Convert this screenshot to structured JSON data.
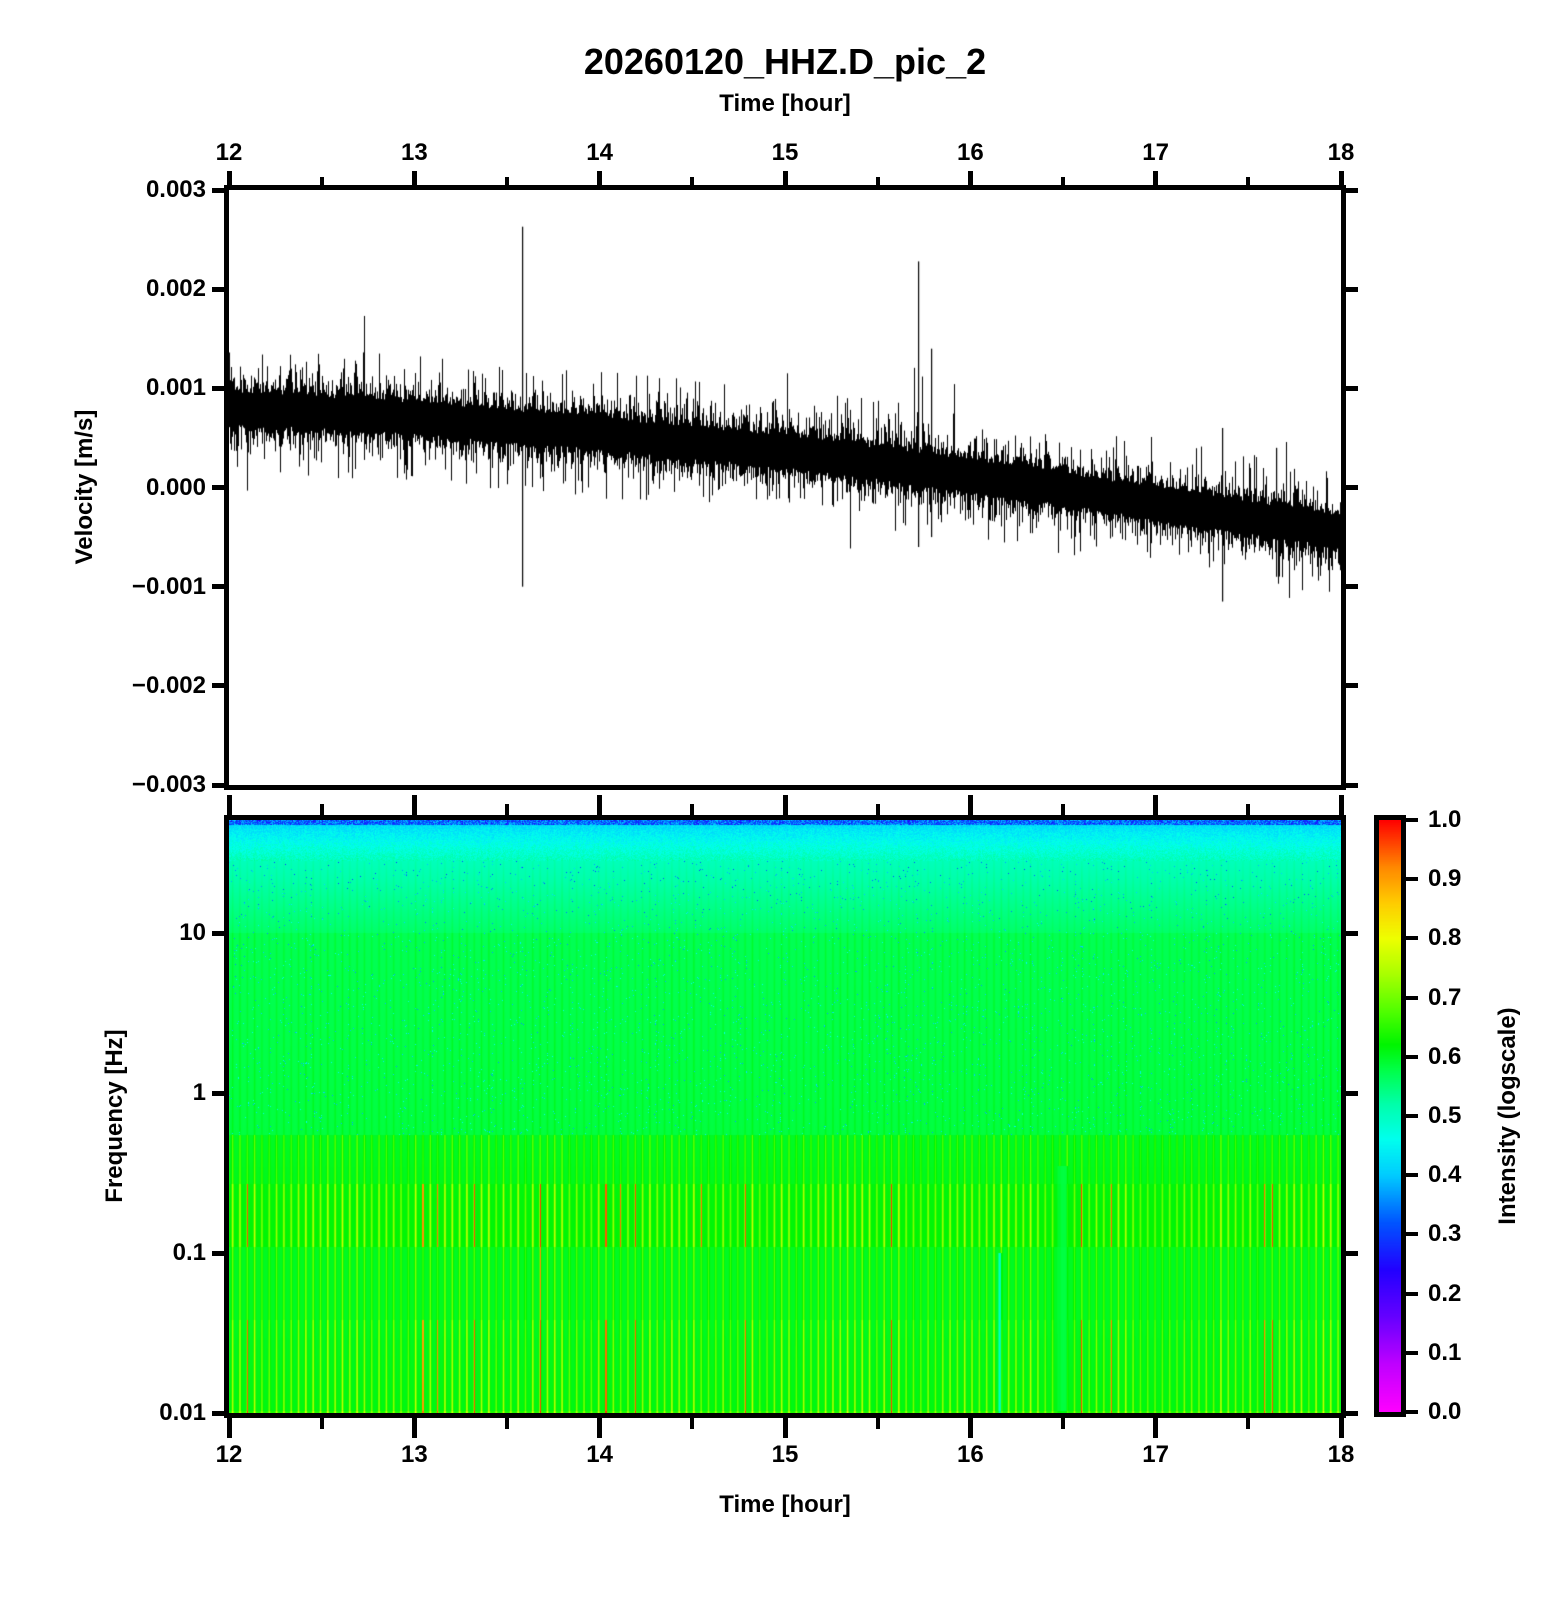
{
  "text": {
    "title": "20260120_HHZ.D_pic_2",
    "top_axis_label": "Time [hour]",
    "bottom_axis_label": "Time [hour]",
    "velocity_axis_label": "Velocity [m/s]",
    "frequency_axis_label": "Frequency [Hz]",
    "colorbar_label": "Intensity (logscale)"
  },
  "colors": {
    "background": "#ffffff",
    "axis": "#000000",
    "trace": "#000000"
  },
  "axes": {
    "time_top": {
      "labels": [
        "12",
        "13",
        "14",
        "15",
        "16",
        "17",
        "18"
      ],
      "values": [
        12,
        13,
        14,
        15,
        16,
        17,
        18
      ],
      "minor_step": 0.5
    },
    "time_bottom": {
      "labels": [
        "12",
        "13",
        "14",
        "15",
        "16",
        "17",
        "18"
      ],
      "values": [
        12,
        13,
        14,
        15,
        16,
        17,
        18
      ],
      "minor_step": 0.5
    },
    "velocity": {
      "labels": [
        "0.003",
        "0.002",
        "0.001",
        "0.000",
        "−0.001",
        "−0.002",
        "−0.003"
      ],
      "values": [
        0.003,
        0.002,
        0.001,
        0.0,
        -0.001,
        -0.002,
        -0.003
      ]
    },
    "frequency": {
      "labels": [
        "10",
        "1",
        "0.1",
        "0.01"
      ],
      "values": [
        10,
        1,
        0.1,
        0.01
      ]
    },
    "colorbar": {
      "labels": [
        "1.0",
        "0.9",
        "0.8",
        "0.7",
        "0.6",
        "0.5",
        "0.4",
        "0.3",
        "0.2",
        "0.1",
        "0.0"
      ],
      "values": [
        1.0,
        0.9,
        0.8,
        0.7,
        0.6,
        0.5,
        0.4,
        0.3,
        0.2,
        0.1,
        0.0
      ]
    }
  },
  "chart_data": [
    {
      "type": "line",
      "panel": "waveform",
      "title": "20260120_HHZ.D_pic_2",
      "xlabel": "Time [hour]",
      "ylabel": "Velocity [m/s]",
      "xlim": [
        12,
        18
      ],
      "ylim": [
        -0.003,
        0.003
      ],
      "x_ticks": [
        12,
        13,
        14,
        15,
        16,
        17,
        18
      ],
      "x_minor_step": 0.5,
      "y_ticks": [
        0.003,
        0.002,
        0.001,
        0.0,
        -0.001,
        -0.002,
        -0.003
      ],
      "series": [
        {
          "name": "HHZ seismic velocity noise band",
          "style": "dense black noise band with slow downward drift",
          "trend_points": [
            [
              12,
              0.0008
            ],
            [
              13,
              0.0007
            ],
            [
              14,
              0.00054
            ],
            [
              15,
              0.00036
            ],
            [
              16,
              0.00012
            ],
            [
              17,
              -0.00016
            ],
            [
              18,
              -0.00045
            ]
          ],
          "noise_core_halfwidth": 0.00015,
          "noise_whisker_mean": 0.00013,
          "extra_spike_prob": 0.02,
          "spikes": [
            {
              "t": 13.58,
              "vmax": 0.00263,
              "vmin": -0.001
            },
            {
              "t": 15.72,
              "vmax": 0.00228,
              "vmin": -0.0006
            },
            {
              "t": 15.79,
              "vmax": 0.0014,
              "vmin": -0.0005
            },
            {
              "t": 17.36,
              "vmax": 0.0006,
              "vmin": -0.00115
            },
            {
              "t": 17.65,
              "vmax": 0.0004,
              "vmin": -0.0009
            }
          ]
        }
      ]
    },
    {
      "type": "heatmap",
      "panel": "spectrogram",
      "xlabel": "Time [hour]",
      "ylabel": "Frequency [Hz]",
      "xlim": [
        12,
        18
      ],
      "ylim_log": [
        0.01,
        51
      ],
      "y_ticks": [
        10,
        1,
        0.1,
        0.01
      ],
      "stripe_period_hours": 0.0395,
      "bands": [
        {
          "u_lo": -2.0,
          "u_hi": -1.42,
          "base_lo": 0.61,
          "base_hi": 0.6,
          "stripe_amp": 0.145,
          "red_prob": 0.1
        },
        {
          "u_lo": -1.42,
          "u_hi": -0.96,
          "base_lo": 0.6,
          "base_hi": 0.6,
          "stripe_amp": 0.105,
          "red_prob": 0.02
        },
        {
          "u_lo": -0.96,
          "u_hi": -0.57,
          "base_lo": 0.618,
          "base_hi": 0.612,
          "stripe_amp": 0.145,
          "red_prob": 0.12
        },
        {
          "u_lo": -0.57,
          "u_hi": -0.26,
          "base_lo": 0.604,
          "base_hi": 0.598,
          "stripe_amp": 0.09,
          "red_prob": 0.0
        },
        {
          "u_lo": -0.26,
          "u_hi": 1.0,
          "base_lo": 0.582,
          "base_hi": 0.57,
          "stripe_amp": 0.022,
          "red_prob": 0.0
        },
        {
          "u_lo": 1.0,
          "u_hi": 1.45,
          "base_lo": 0.558,
          "base_hi": 0.505,
          "stripe_amp": 0.015,
          "red_prob": 0.0
        },
        {
          "u_lo": 1.45,
          "u_hi": 1.7076,
          "base_lo": 0.505,
          "base_hi": 0.405,
          "stripe_amp": 0.01,
          "red_prob": 0.0
        }
      ],
      "anomalies": [
        {
          "t": 16.16,
          "halfwidth_h": 0.013,
          "f_max": 0.1,
          "value": 0.47,
          "mode": "cyan-lane"
        },
        {
          "t": 16.5,
          "halfwidth_h": 0.035,
          "f_max": 0.35,
          "value": 0.578,
          "mode": "flat-green-lane"
        }
      ],
      "colorbar": {
        "label": "Intensity (logscale)",
        "range": [
          0.0,
          1.0
        ],
        "ticks": [
          1.0,
          0.9,
          0.8,
          0.7,
          0.6,
          0.5,
          0.4,
          0.3,
          0.2,
          0.1,
          0.0
        ],
        "stops": [
          [
            0.0,
            "#ff00ff"
          ],
          [
            0.08,
            "#c000ff"
          ],
          [
            0.16,
            "#6600ff"
          ],
          [
            0.24,
            "#2200ff"
          ],
          [
            0.32,
            "#0055ff"
          ],
          [
            0.4,
            "#00ccff"
          ],
          [
            0.46,
            "#00ffee"
          ],
          [
            0.52,
            "#00ffaa"
          ],
          [
            0.58,
            "#00ff44"
          ],
          [
            0.62,
            "#00f500"
          ],
          [
            0.68,
            "#55ff00"
          ],
          [
            0.74,
            "#aaff00"
          ],
          [
            0.8,
            "#eeff00"
          ],
          [
            0.86,
            "#ffcc00"
          ],
          [
            0.92,
            "#ff8800"
          ],
          [
            1.0,
            "#ff0000"
          ]
        ]
      }
    }
  ]
}
